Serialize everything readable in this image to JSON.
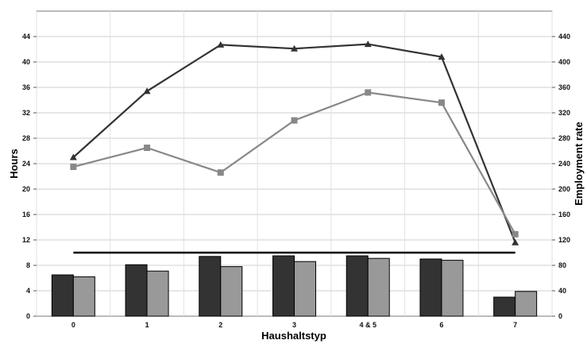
{
  "chart_data": {
    "type": "bar",
    "title": "",
    "xlabel": "Haushaltstyp",
    "ylabel_left": "Hours",
    "ylabel_right": "Employment rate",
    "categories": [
      "0",
      "1",
      "2",
      "3",
      "4 & 5",
      "6",
      "7"
    ],
    "ylim_left": [
      0,
      48
    ],
    "yticks_left": [
      "0",
      "4",
      "8",
      "12",
      "16",
      "20",
      "24",
      "28",
      "32",
      "36",
      "40",
      "44"
    ],
    "ylim_right": [
      0,
      480
    ],
    "yticks_right": [
      "0",
      "40",
      "80",
      "120",
      "160",
      "200",
      "240",
      "280",
      "320",
      "360",
      "400",
      "440"
    ],
    "grid": true,
    "bar_series": [
      {
        "color": "#333333",
        "axis": "left",
        "values": [
          6.5,
          8.1,
          9.4,
          9.5,
          9.5,
          9.0,
          3.0
        ]
      },
      {
        "color": "#999999",
        "axis": "left",
        "values": [
          6.2,
          7.1,
          7.8,
          8.6,
          9.1,
          8.8,
          3.9
        ]
      }
    ],
    "line_series": [
      {
        "color": "#333333",
        "marker": "triangle",
        "axis": "right",
        "values": [
          250,
          354,
          427,
          421,
          428,
          408,
          116
        ]
      },
      {
        "color": "#888888",
        "marker": "square",
        "axis": "right",
        "values": [
          235,
          265,
          226,
          308,
          352,
          336,
          129
        ]
      }
    ],
    "reference_line": {
      "color": "#000000",
      "value": 10,
      "axis": "left",
      "from_category": "0",
      "to_category": "7"
    }
  }
}
